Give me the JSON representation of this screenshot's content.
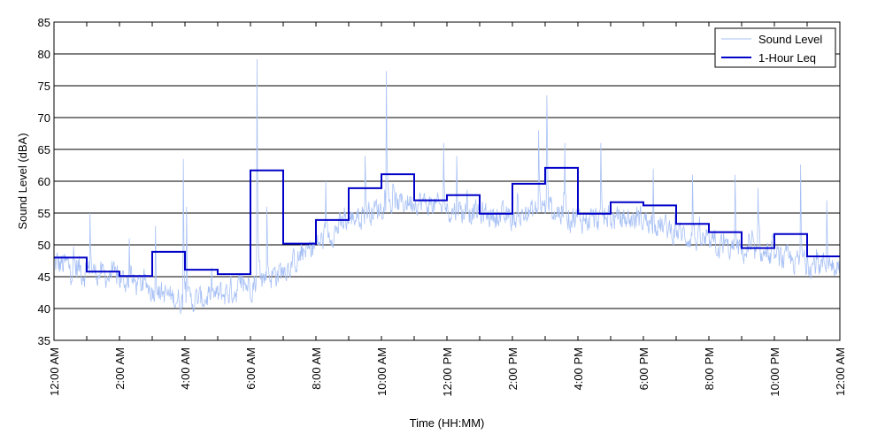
{
  "chart_data": {
    "type": "line",
    "xlabel": "Time (HH:MM)",
    "ylabel": "Sound Level (dBA)",
    "xlim": [
      0,
      24
    ],
    "ylim": [
      35,
      85
    ],
    "yticks": [
      35,
      40,
      45,
      50,
      55,
      60,
      65,
      70,
      75,
      80,
      85
    ],
    "xtick_labels": [
      "12:00 AM",
      "2:00 AM",
      "4:00 AM",
      "6:00 AM",
      "8:00 AM",
      "10:00 AM",
      "12:00 PM",
      "2:00 PM",
      "4:00 PM",
      "6:00 PM",
      "8:00 PM",
      "10:00 PM",
      "12:00 AM"
    ],
    "xtick_hours": [
      0,
      2,
      4,
      6,
      8,
      10,
      12,
      14,
      16,
      18,
      20,
      22,
      24
    ],
    "grid": "horizontal",
    "legend_position": "top-right",
    "series": [
      {
        "name": "Sound Level",
        "color": "#a8c1f5",
        "note": "dense 1-minute trace; hourly envelope approximations",
        "hourly_mean": [
          47,
          46,
          44.5,
          43,
          41,
          42,
          44,
          46,
          50,
          54,
          56,
          57,
          55.5,
          55,
          54,
          56,
          54,
          54,
          54,
          52,
          50,
          49,
          48,
          47
        ],
        "hourly_spread": [
          4,
          3,
          3,
          3,
          3,
          3.5,
          3.5,
          3,
          3,
          3,
          3,
          3,
          3,
          3,
          3,
          3.5,
          3,
          3,
          3,
          3,
          3,
          3,
          3,
          3
        ],
        "peaks": [
          {
            "hour": 1.1,
            "value": 55
          },
          {
            "hour": 2.3,
            "value": 51
          },
          {
            "hour": 3.1,
            "value": 53
          },
          {
            "hour": 3.95,
            "value": 63.5
          },
          {
            "hour": 4.05,
            "value": 56
          },
          {
            "hour": 6.2,
            "value": 79.2
          },
          {
            "hour": 6.5,
            "value": 56
          },
          {
            "hour": 8.3,
            "value": 60
          },
          {
            "hour": 9.5,
            "value": 64
          },
          {
            "hour": 10.15,
            "value": 77.3
          },
          {
            "hour": 11.9,
            "value": 66
          },
          {
            "hour": 12.3,
            "value": 64
          },
          {
            "hour": 14.8,
            "value": 68
          },
          {
            "hour": 15.05,
            "value": 73.5
          },
          {
            "hour": 15.6,
            "value": 66
          },
          {
            "hour": 16.7,
            "value": 66
          },
          {
            "hour": 18.3,
            "value": 62
          },
          {
            "hour": 19.5,
            "value": 61
          },
          {
            "hour": 20.8,
            "value": 61
          },
          {
            "hour": 21.5,
            "value": 59
          },
          {
            "hour": 22.8,
            "value": 62.6
          },
          {
            "hour": 23.6,
            "value": 57
          }
        ]
      },
      {
        "name": "1-Hour Leq",
        "color": "#0000c8",
        "values": [
          48,
          45.8,
          45.1,
          48.9,
          46.1,
          45.4,
          61.7,
          50.2,
          53.9,
          58.9,
          61.1,
          57,
          57.8,
          54.9,
          59.6,
          62.1,
          54.9,
          56.7,
          56.2,
          53.3,
          52,
          49.5,
          51.7,
          48.2
        ]
      }
    ]
  }
}
